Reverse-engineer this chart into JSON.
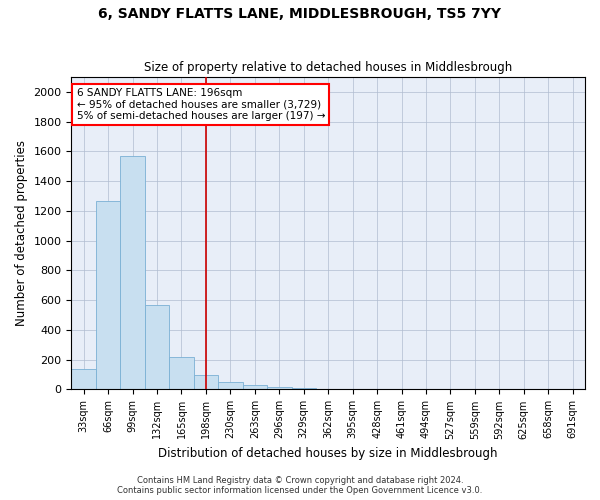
{
  "title": "6, SANDY FLATTS LANE, MIDDLESBROUGH, TS5 7YY",
  "subtitle": "Size of property relative to detached houses in Middlesbrough",
  "xlabel": "Distribution of detached houses by size in Middlesbrough",
  "ylabel": "Number of detached properties",
  "bar_color": "#c8dff0",
  "bar_edge_color": "#7ab0d4",
  "background_color": "#e8eef8",
  "grid_color": "#b0bcd0",
  "vline_color": "#cc0000",
  "categories": [
    "33sqm",
    "66sqm",
    "99sqm",
    "132sqm",
    "165sqm",
    "198sqm",
    "230sqm",
    "263sqm",
    "296sqm",
    "329sqm",
    "362sqm",
    "395sqm",
    "428sqm",
    "461sqm",
    "494sqm",
    "527sqm",
    "559sqm",
    "592sqm",
    "625sqm",
    "658sqm",
    "691sqm"
  ],
  "values": [
    140,
    1270,
    1570,
    565,
    220,
    95,
    52,
    28,
    15,
    7,
    3,
    2,
    1,
    0,
    0,
    0,
    0,
    0,
    0,
    0,
    0
  ],
  "ylim": [
    0,
    2100
  ],
  "yticks": [
    0,
    200,
    400,
    600,
    800,
    1000,
    1200,
    1400,
    1600,
    1800,
    2000
  ],
  "vline_x_index": 5,
  "annotation_title": "6 SANDY FLATTS LANE: 196sqm",
  "annotation_line1": "← 95% of detached houses are smaller (3,729)",
  "annotation_line2": "5% of semi-detached houses are larger (197) →",
  "footer_line1": "Contains HM Land Registry data © Crown copyright and database right 2024.",
  "footer_line2": "Contains public sector information licensed under the Open Government Licence v3.0."
}
